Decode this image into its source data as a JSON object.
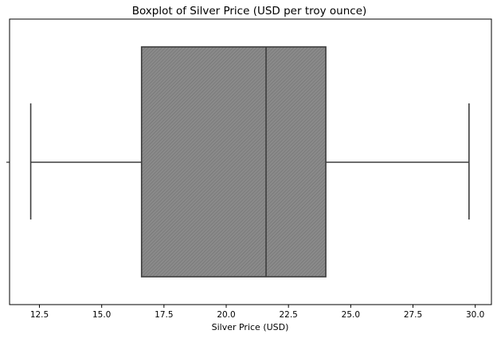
{
  "chart_data": {
    "type": "boxplot",
    "title": "Boxplot of Silver Price (USD per troy ounce)",
    "xlabel": "Silver Price (USD)",
    "ylabel": "",
    "xlim": [
      11.3,
      30.65
    ],
    "xticks": [
      12.5,
      15.0,
      17.5,
      20.0,
      22.5,
      25.0,
      27.5,
      30.0
    ],
    "xtick_labels": [
      "12.5",
      "15.0",
      "17.5",
      "20.0",
      "22.5",
      "25.0",
      "27.5",
      "30.0"
    ],
    "box": {
      "whisker_low": 12.15,
      "q1": 16.6,
      "median": 21.6,
      "q3": 24.0,
      "whisker_high": 29.75
    },
    "fill_color": "#808080",
    "line_color": "#3d3d3d",
    "grid": false
  }
}
